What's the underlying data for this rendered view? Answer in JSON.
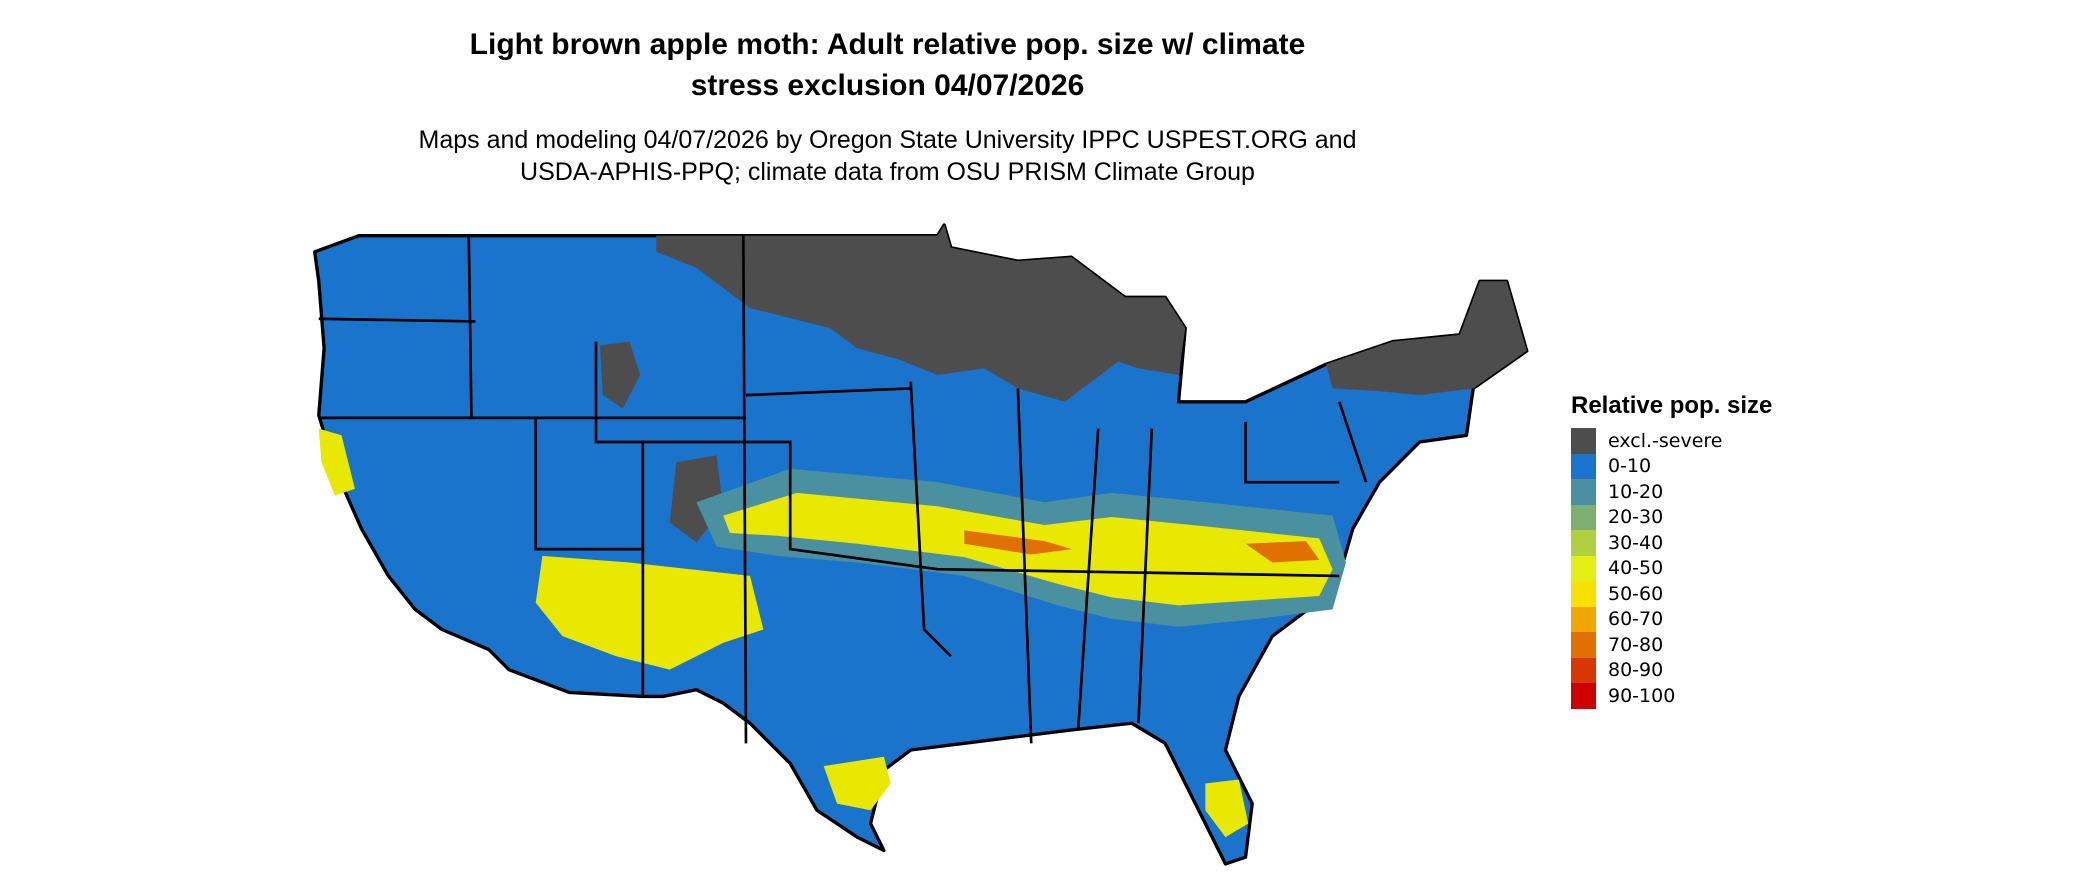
{
  "title_lines": [
    "Light brown apple moth: Adult relative pop. size w/ climate",
    "stress exclusion 04/07/2026"
  ],
  "subtitle_lines": [
    "Maps and modeling 04/07/2026 by Oregon State University IPPC USPEST.ORG and",
    "USDA-APHIS-PPQ; climate data from OSU PRISM Climate Group"
  ],
  "map": {
    "region": "Contiguous United States",
    "base_color": "#1b74cc",
    "border_color": "#000000"
  },
  "legend": {
    "title": "Relative pop. size",
    "items": [
      {
        "label": "excl.-severe",
        "color": "#4d4d4d"
      },
      {
        "label": "0-10",
        "color": "#1b74cc"
      },
      {
        "label": "10-20",
        "color": "#4a90a0"
      },
      {
        "label": "20-30",
        "color": "#7caf70"
      },
      {
        "label": "30-40",
        "color": "#b0d040"
      },
      {
        "label": "40-50",
        "color": "#e2ef14"
      },
      {
        "label": "50-60",
        "color": "#f8e000"
      },
      {
        "label": "60-70",
        "color": "#eea800"
      },
      {
        "label": "70-80",
        "color": "#e07000"
      },
      {
        "label": "80-90",
        "color": "#d83800"
      },
      {
        "label": "90-100",
        "color": "#cc0000"
      }
    ]
  }
}
